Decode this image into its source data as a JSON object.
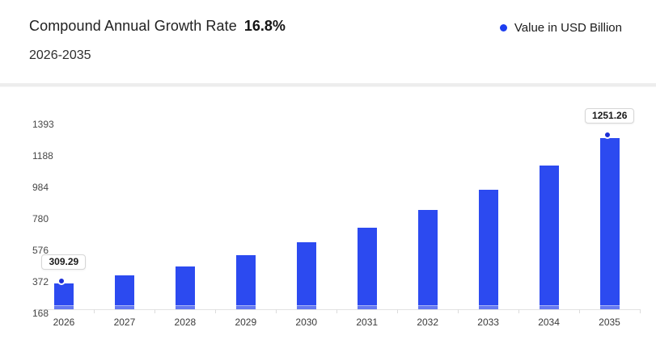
{
  "header": {
    "title": "Compound Annual Growth Rate",
    "cagr_value": "16.8%",
    "period": "2026-2035",
    "legend_label": "Value in USD Billion"
  },
  "chart_data": {
    "type": "bar",
    "title": "Compound Annual Growth Rate 16.8%",
    "subtitle": "2026-2035",
    "xlabel": "",
    "ylabel": "Value in USD Billion",
    "categories": [
      "2026",
      "2027",
      "2028",
      "2029",
      "2030",
      "2031",
      "2032",
      "2033",
      "2034",
      "2035"
    ],
    "series": [
      {
        "name": "Value in USD Billion",
        "values": [
          309.29,
          361.25,
          421.94,
          492.83,
          575.62,
          672.32,
          785.27,
          917.19,
          1071.28,
          1251.26
        ]
      }
    ],
    "y_ticks": [
      168,
      372,
      576,
      780,
      984,
      1188,
      1393
    ],
    "ylim": [
      168,
      1393
    ],
    "grid": false,
    "legend": [
      "Value in USD Billion"
    ],
    "legend_position": "top-right",
    "annotations": [
      {
        "category": "2026",
        "value_label": "309.29"
      },
      {
        "category": "2035",
        "value_label": "1251.26"
      }
    ]
  },
  "colors": {
    "bar": "#2c4af0",
    "bar_base": "#6579f1",
    "marker_dot": "#1c2ed6",
    "legend_dot": "#1d3ef0",
    "axis_line": "#e2e2e2",
    "tick_label": "#3a3a3a",
    "tooltip_border": "#d6d6d6"
  }
}
